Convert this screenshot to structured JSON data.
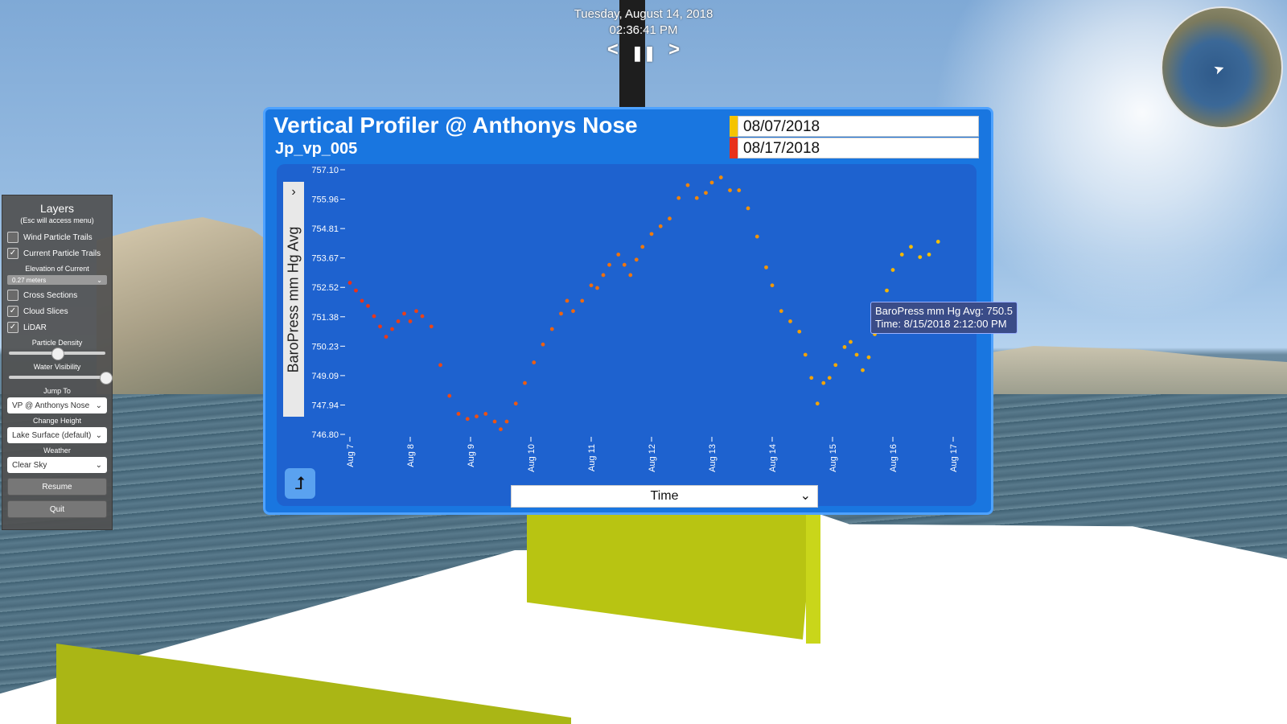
{
  "timebar": {
    "date": "Tuesday, August 14, 2018",
    "time": "02:36:41 PM",
    "prev_icon": "<",
    "pause_icon": "❚❚",
    "next_icon": ">"
  },
  "layers": {
    "title": "Layers",
    "subtitle": "(Esc will access menu)",
    "wind_particle_trails": {
      "label": "Wind Particle Trails",
      "checked": false
    },
    "current_particle_trails": {
      "label": "Current Particle Trails",
      "checked": true
    },
    "elevation_label": "Elevation of Current",
    "elevation_value": "0.27 meters",
    "cross_sections": {
      "label": "Cross Sections",
      "checked": false
    },
    "cloud_slices": {
      "label": "Cloud Slices",
      "checked": true
    },
    "lidar": {
      "label": "LiDAR",
      "checked": true
    },
    "particle_density_label": "Particle Density",
    "particle_density": 0.5,
    "water_visibility_label": "Water Visibility",
    "water_visibility": 1.0,
    "jump_to_label": "Jump To",
    "jump_to_value": "VP @ Anthonys Nose",
    "change_height_label": "Change Height",
    "change_height_value": "Lake Surface (default)",
    "weather_label": "Weather",
    "weather_value": "Clear Sky",
    "resume_label": "Resume",
    "quit_label": "Quit"
  },
  "panel": {
    "title": "Vertical Profiler @ Anthonys Nose",
    "subtitle": "Jp_vp_005",
    "start_date": "08/07/2018",
    "end_date": "08/17/2018",
    "y_axis_title": "BaroPress mm Hg Avg",
    "x_axis_select": "Time",
    "tooltip_line1": "BaroPress mm Hg Avg: 750.5",
    "tooltip_line2": "Time: 8/15/2018 2:12:00 PM",
    "colors": {
      "panel": "#1976e0",
      "plot": "#1e62cf",
      "start_swatch": "#f5c400",
      "end_swatch": "#e8311a"
    }
  },
  "chart_data": {
    "type": "scatter",
    "title": "Vertical Profiler @ Anthonys Nose",
    "subtitle": "Jp_vp_005",
    "ylabel": "BaroPress mm Hg Avg",
    "xlabel": "Time",
    "y_ticks": [
      "757.10",
      "755.96",
      "754.81",
      "753.67",
      "752.52",
      "751.38",
      "750.23",
      "749.09",
      "747.94",
      "746.80"
    ],
    "x_ticks": [
      "Aug 7",
      "Aug 8",
      "Aug 9",
      "Aug 10",
      "Aug 11",
      "Aug 12",
      "Aug 13",
      "Aug 14",
      "Aug 15",
      "Aug 16",
      "Aug 17"
    ],
    "ylim": [
      746.8,
      757.1
    ],
    "xlim": [
      0,
      10
    ],
    "color_scale": [
      "#e8311a",
      "#f5c400"
    ],
    "points": [
      [
        0.0,
        752.7
      ],
      [
        0.1,
        752.4
      ],
      [
        0.2,
        752.0
      ],
      [
        0.3,
        751.8
      ],
      [
        0.4,
        751.4
      ],
      [
        0.5,
        751.0
      ],
      [
        0.6,
        750.6
      ],
      [
        0.7,
        750.9
      ],
      [
        0.8,
        751.2
      ],
      [
        0.9,
        751.5
      ],
      [
        1.0,
        751.2
      ],
      [
        1.1,
        751.6
      ],
      [
        1.2,
        751.4
      ],
      [
        1.35,
        751.0
      ],
      [
        1.5,
        749.5
      ],
      [
        1.65,
        748.3
      ],
      [
        1.8,
        747.6
      ],
      [
        1.95,
        747.4
      ],
      [
        2.1,
        747.5
      ],
      [
        2.25,
        747.6
      ],
      [
        2.4,
        747.3
      ],
      [
        2.5,
        747.0
      ],
      [
        2.6,
        747.3
      ],
      [
        2.75,
        748.0
      ],
      [
        2.9,
        748.8
      ],
      [
        3.05,
        749.6
      ],
      [
        3.2,
        750.3
      ],
      [
        3.35,
        750.9
      ],
      [
        3.5,
        751.5
      ],
      [
        3.6,
        752.0
      ],
      [
        3.7,
        751.6
      ],
      [
        3.85,
        752.0
      ],
      [
        4.0,
        752.6
      ],
      [
        4.1,
        752.5
      ],
      [
        4.2,
        753.0
      ],
      [
        4.3,
        753.4
      ],
      [
        4.45,
        753.8
      ],
      [
        4.55,
        753.4
      ],
      [
        4.65,
        753.0
      ],
      [
        4.75,
        753.6
      ],
      [
        4.85,
        754.1
      ],
      [
        5.0,
        754.6
      ],
      [
        5.15,
        754.9
      ],
      [
        5.3,
        755.2
      ],
      [
        5.45,
        756.0
      ],
      [
        5.6,
        756.5
      ],
      [
        5.75,
        756.0
      ],
      [
        5.9,
        756.2
      ],
      [
        6.0,
        756.6
      ],
      [
        6.15,
        756.8
      ],
      [
        6.3,
        756.3
      ],
      [
        6.45,
        756.3
      ],
      [
        6.6,
        755.6
      ],
      [
        6.75,
        754.5
      ],
      [
        6.9,
        753.3
      ],
      [
        7.0,
        752.6
      ],
      [
        7.15,
        751.6
      ],
      [
        7.3,
        751.2
      ],
      [
        7.45,
        750.8
      ],
      [
        7.55,
        749.9
      ],
      [
        7.65,
        749.0
      ],
      [
        7.75,
        748.0
      ],
      [
        7.85,
        748.8
      ],
      [
        7.95,
        749.0
      ],
      [
        8.05,
        749.5
      ],
      [
        8.2,
        750.2
      ],
      [
        8.3,
        750.4
      ],
      [
        8.4,
        749.9
      ],
      [
        8.5,
        749.3
      ],
      [
        8.6,
        749.8
      ],
      [
        8.7,
        750.7
      ],
      [
        8.8,
        751.4
      ],
      [
        8.9,
        752.4
      ],
      [
        9.0,
        753.2
      ],
      [
        9.15,
        753.8
      ],
      [
        9.3,
        754.1
      ],
      [
        9.45,
        753.7
      ],
      [
        9.6,
        753.8
      ],
      [
        9.75,
        754.3
      ]
    ]
  },
  "icons": {
    "corner_button": "corner-arrow-icon",
    "minimap": "minimap-icon"
  }
}
